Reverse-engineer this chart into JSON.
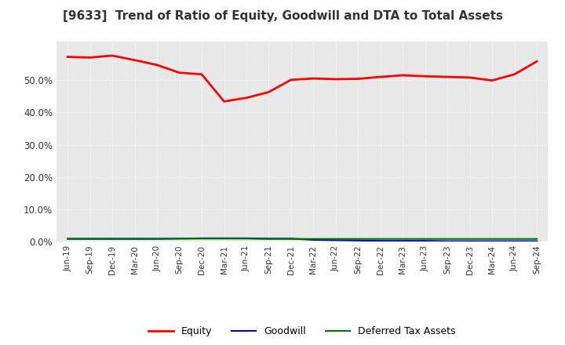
{
  "title": "[9633]  Trend of Ratio of Equity, Goodwill and DTA to Total Assets",
  "x_labels": [
    "Jun-19",
    "Sep-19",
    "Dec-19",
    "Mar-20",
    "Jun-20",
    "Sep-20",
    "Dec-20",
    "Mar-21",
    "Jun-21",
    "Sep-21",
    "Dec-21",
    "Mar-22",
    "Jun-22",
    "Sep-22",
    "Dec-22",
    "Mar-23",
    "Jun-23",
    "Sep-23",
    "Dec-23",
    "Mar-24",
    "Jun-24",
    "Sep-24"
  ],
  "equity": [
    0.572,
    0.57,
    0.576,
    0.562,
    0.547,
    0.523,
    0.518,
    0.434,
    0.445,
    0.463,
    0.501,
    0.505,
    0.503,
    0.504,
    0.51,
    0.515,
    0.512,
    0.51,
    0.508,
    0.499,
    0.518,
    0.558
  ],
  "goodwill": [
    0.008,
    0.008,
    0.008,
    0.008,
    0.008,
    0.009,
    0.01,
    0.01,
    0.01,
    0.009,
    0.009,
    0.005,
    0.004,
    0.003,
    0.002,
    0.002,
    0.002,
    0.001,
    0.001,
    0.001,
    0.001,
    0.001
  ],
  "dta": [
    0.009,
    0.009,
    0.009,
    0.009,
    0.009,
    0.009,
    0.009,
    0.009,
    0.009,
    0.008,
    0.008,
    0.008,
    0.008,
    0.008,
    0.008,
    0.008,
    0.008,
    0.008,
    0.008,
    0.008,
    0.008,
    0.008
  ],
  "equity_color": "#ff0000",
  "goodwill_color": "#0000cc",
  "dta_color": "#007700",
  "ylim": [
    0.0,
    0.62
  ],
  "yticks": [
    0.0,
    0.1,
    0.2,
    0.3,
    0.4,
    0.5
  ],
  "plot_bg_color": "#e8e8e8",
  "fig_bg_color": "#ffffff",
  "grid_color": "#ffffff",
  "legend_labels": [
    "Equity",
    "Goodwill",
    "Deferred Tax Assets"
  ]
}
